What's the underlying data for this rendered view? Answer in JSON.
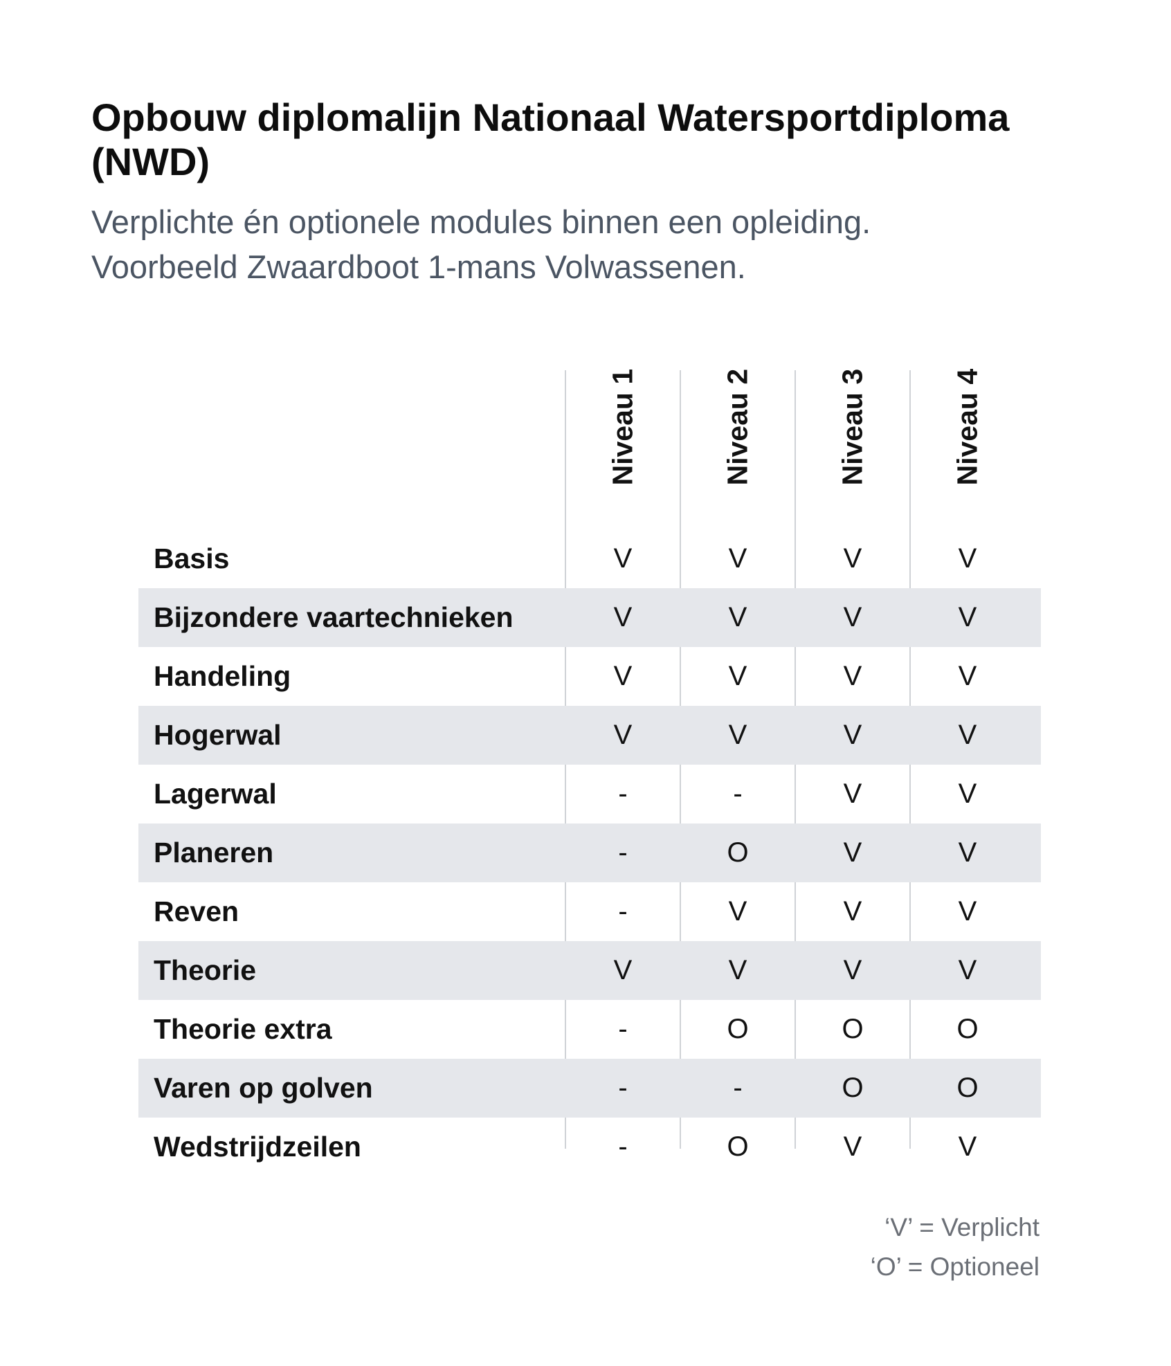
{
  "title": "Opbouw diplomalijn Nationaal Watersportdiploma (NWD)",
  "subtitle": {
    "line1": "Verplichte én optionele modules binnen een opleiding.",
    "line2": "Voorbeeld Zwaardboot 1-mans Volwassenen."
  },
  "table": {
    "columns": [
      "Niveau 1",
      "Niveau 2",
      "Niveau 3",
      "Niveau 4"
    ],
    "rows": [
      {
        "label": "Basis",
        "values": [
          "V",
          "V",
          "V",
          "V"
        ]
      },
      {
        "label": "Bijzondere vaartechnieken",
        "values": [
          "V",
          "V",
          "V",
          "V"
        ]
      },
      {
        "label": "Handeling",
        "values": [
          "V",
          "V",
          "V",
          "V"
        ]
      },
      {
        "label": "Hogerwal",
        "values": [
          "V",
          "V",
          "V",
          "V"
        ]
      },
      {
        "label": "Lagerwal",
        "values": [
          "-",
          "-",
          "V",
          "V"
        ]
      },
      {
        "label": "Planeren",
        "values": [
          "-",
          "O",
          "V",
          "V"
        ]
      },
      {
        "label": "Reven",
        "values": [
          "-",
          "V",
          "V",
          "V"
        ]
      },
      {
        "label": "Theorie",
        "values": [
          "V",
          "V",
          "V",
          "V"
        ]
      },
      {
        "label": "Theorie extra",
        "values": [
          "-",
          "O",
          "O",
          "O"
        ]
      },
      {
        "label": "Varen op golven",
        "values": [
          "-",
          "-",
          "O",
          "O"
        ]
      },
      {
        "label": "Wedstrijdzeilen",
        "values": [
          "-",
          "O",
          "V",
          "V"
        ]
      }
    ]
  },
  "legend": {
    "line1": "‘V’ = Verplicht",
    "line2": "‘O’ = Optioneel"
  },
  "colors": {
    "stripe": "#e5e7eb",
    "subtitle": "#4b5563",
    "legend": "#6b6f76",
    "divider": "#cfd2d6"
  }
}
